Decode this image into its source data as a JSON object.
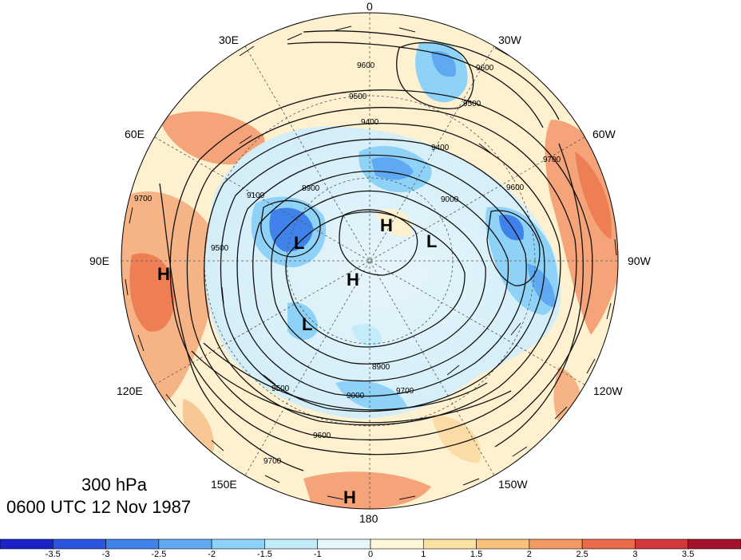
{
  "title": {
    "level": "300 hPa",
    "datetime": "0600 UTC 12 Nov 1987"
  },
  "longitude_labels": {
    "top": "0",
    "upper_left": "30E",
    "upper_right": "30W",
    "mid_upper_left": "60E",
    "mid_upper_right": "60W",
    "left": "90E",
    "right": "90W",
    "lower_left": "120E",
    "lower_right": "120W",
    "bottom_left": "150E",
    "bottom_right": "150W",
    "bottom": "180"
  },
  "pressure_centers": [
    {
      "label": "H",
      "name": "high-center-90e"
    },
    {
      "label": "L",
      "name": "low-center-siberia"
    },
    {
      "label": "H",
      "name": "high-center-arctic"
    },
    {
      "label": "L",
      "name": "low-center-greenland"
    },
    {
      "label": "H",
      "name": "high-center-pole"
    },
    {
      "label": "L",
      "name": "low-center-east-asia"
    },
    {
      "label": "H",
      "name": "high-center-180"
    }
  ],
  "contour_labels": [
    "9600",
    "9500",
    "9400",
    "8900",
    "9100",
    "9700",
    "9600",
    "9500",
    "9400",
    "9000",
    "9600",
    "9700",
    "9500",
    "9000",
    "8900",
    "9700",
    "9600",
    "9500",
    "9700"
  ],
  "colorbar": {
    "ticks": [
      "-3.5",
      "-3",
      "-2.5",
      "-2",
      "-1.5",
      "-1",
      "0",
      "1",
      "1.5",
      "2",
      "2.5",
      "3",
      "3.5"
    ],
    "colors": [
      "#1b22c8",
      "#2b55e0",
      "#3f82ea",
      "#5fa9f2",
      "#8fd2f7",
      "#c3ecfb",
      "#e6f7fc",
      "#fff7d8",
      "#fbe2a4",
      "#f8c07a",
      "#f39a62",
      "#ea6a4a",
      "#d2383a",
      "#a3112a"
    ]
  }
}
